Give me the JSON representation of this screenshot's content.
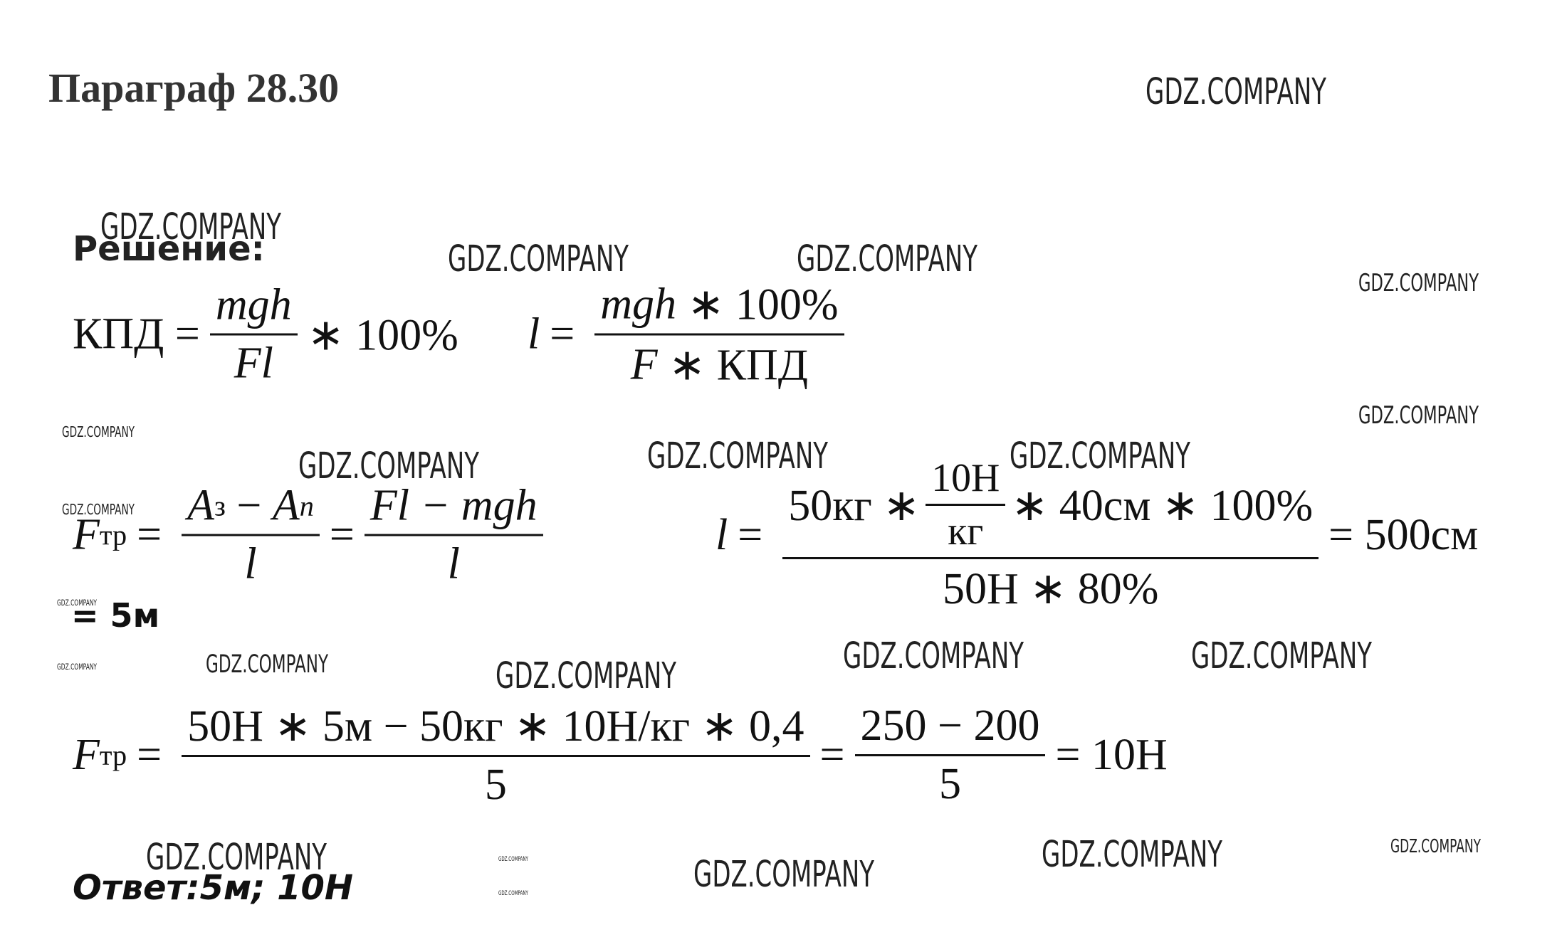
{
  "title": "Параграф 28.30",
  "watermark": "GDZ.COMPANY",
  "solution_label": "Решение:",
  "formula_1": {
    "lhs": "КПД =",
    "numerator": "mgh",
    "denominator": "Fl",
    "tail": "∗ 100%"
  },
  "formula_2": {
    "lhs": "l",
    "eq": "=",
    "numerator_var": "mgh",
    "numerator_rest": "∗ 100%",
    "denominator_var": "F",
    "denominator_rest": "∗ КПД"
  },
  "formula_3": {
    "lhs": "F",
    "lhs_sub": "тр",
    "eq": "=",
    "numerator_1": [
      "A",
      "з",
      "−",
      "A",
      "n"
    ],
    "denominator_1": "l",
    "eq_2": "=",
    "numerator_2": "Fl − mgh",
    "denominator_2": "l"
  },
  "formula_4": {
    "lhs": "l",
    "eq": "=",
    "numerator_start": "50кг ∗",
    "inner_numerator": "10Н",
    "inner_denominator": "кг",
    "numerator_end": "∗ 40см ∗ 100%",
    "denominator": "50Н ∗ 80%",
    "result": "= 500см"
  },
  "result_l": "= 5м",
  "formula_5": {
    "lhs": "F",
    "lhs_sub": "тр",
    "eq": "=",
    "numerator_1": "50Н ∗ 5м − 50кг ∗ 10Н/кг ∗ 0,4",
    "denominator_1": "5",
    "eq_2": "=",
    "numerator_2": "250 − 200",
    "denominator_2": "5",
    "result": "= 10Н"
  },
  "answer": "Ответ:5м; 10Н"
}
